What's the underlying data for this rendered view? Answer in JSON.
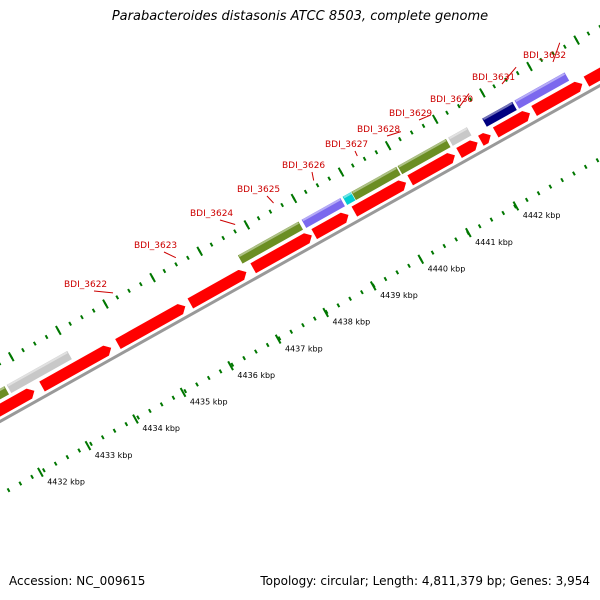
{
  "title": "Parabacteroides distasonis ATCC 8503, complete genome",
  "footer": {
    "accession": "Accession: NC_009615",
    "summary": "Topology: circular; Length: 4,811,379 bp; Genes: 3,954"
  },
  "colors": {
    "cds": "#ff0000",
    "gene_label": "#cc0000",
    "ticks": "#007700",
    "backbone": "#999999",
    "cog_green": "#6b8e23",
    "cog_gray": "#c8c8c8",
    "cog_purple": "#7b68ee",
    "cog_cyan": "#00ced1",
    "cog_navy": "#000080"
  },
  "gene_labels": [
    "BDI_3622",
    "BDI_3623",
    "BDI_3624",
    "BDI_3625",
    "BDI_3626",
    "BDI_3627",
    "BDI_3628",
    "BDI_3629",
    "BDI_3630",
    "BDI_3631",
    "BDI_3632"
  ],
  "scale_labels": [
    "4432 kbp",
    "4433 kbp",
    "4434 kbp",
    "4435 kbp",
    "4436 kbp",
    "4437 kbp",
    "4438 kbp",
    "4439 kbp",
    "4440 kbp",
    "4441 kbp",
    "4442 kbp"
  ],
  "icons": [
    "forward-strand-cds-arrow",
    "reverse-strand-cds-arrow"
  ]
}
